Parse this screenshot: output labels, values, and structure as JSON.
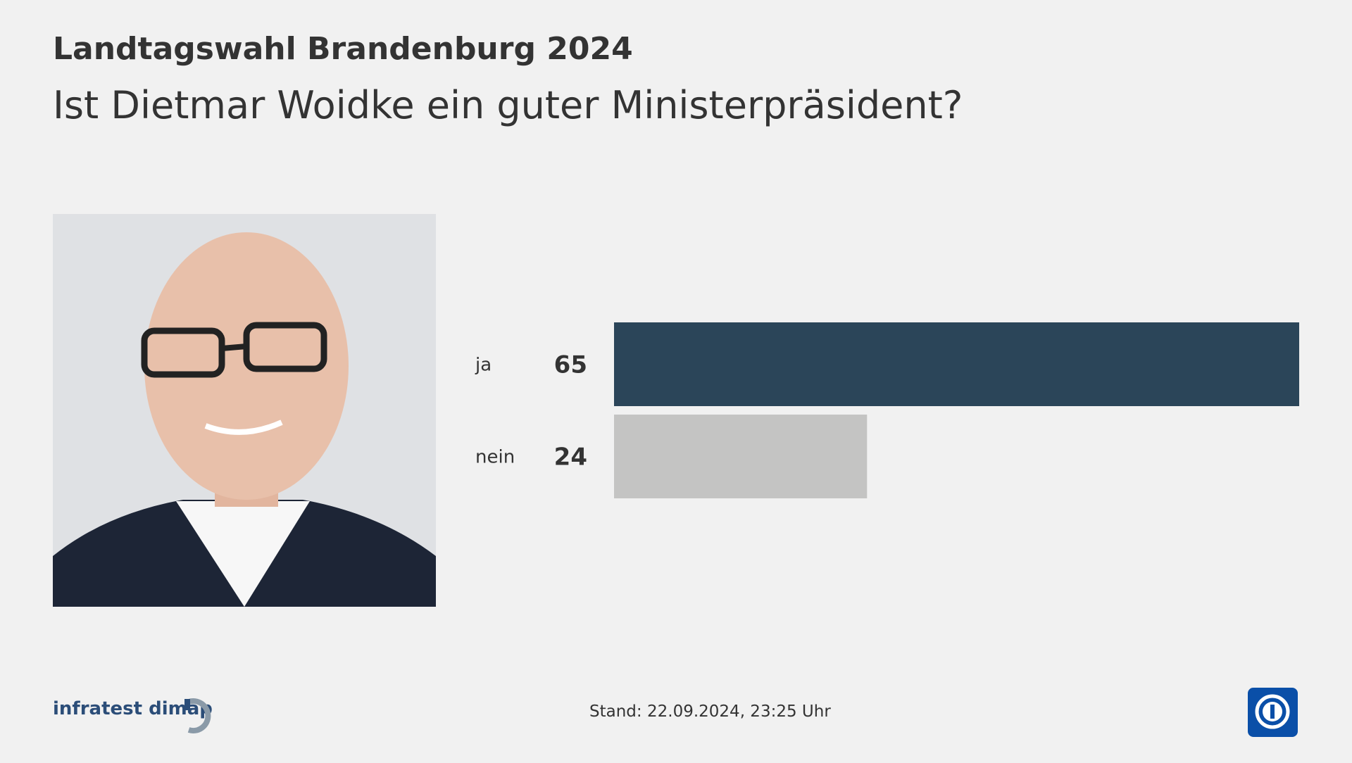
{
  "chart_data": {
    "type": "bar",
    "orientation": "horizontal",
    "title": "Landtagswahl Brandenburg 2024",
    "subtitle": "Ist Dietmar Woidke ein guter Ministerpräsident?",
    "categories": [
      "ja",
      "nein"
    ],
    "values": [
      65,
      24
    ],
    "colors": [
      "#2b4559",
      "#c4c4c3"
    ],
    "source": "infratest dimap",
    "stand_label": "Stand:",
    "stand_date": "22.09.2024, 23:25 Uhr"
  }
}
